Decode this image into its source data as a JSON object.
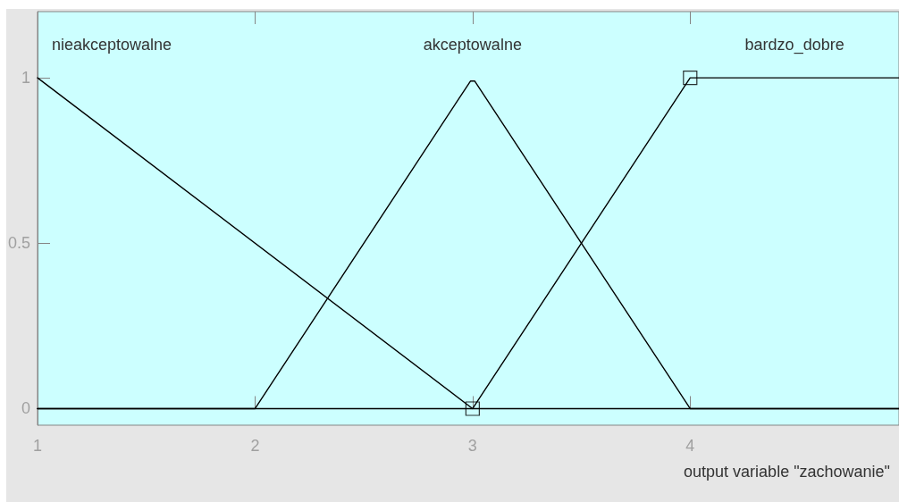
{
  "chart_data": {
    "type": "line",
    "xlabel": "output variable \"zachowanie\"",
    "xlim": [
      1,
      4.96
    ],
    "xticks": [
      1,
      2,
      3,
      4
    ],
    "ylim": [
      -0.05,
      1.2
    ],
    "yticks": [
      0,
      0.5,
      1
    ],
    "series": [
      {
        "name": "nieakceptowalne",
        "color": "#000000",
        "x": [
          1,
          3,
          4.96
        ],
        "values": [
          1,
          0,
          0
        ]
      },
      {
        "name": "akceptowalne",
        "color": "#000000",
        "x": [
          1,
          2,
          2.99,
          3.01,
          4,
          4.96
        ],
        "values": [
          0,
          0,
          0.99,
          0.99,
          0,
          0
        ]
      },
      {
        "name": "bardzo_dobre",
        "color": "#000000",
        "x": [
          1,
          3,
          4,
          4.96
        ],
        "values": [
          0,
          0,
          1,
          1
        ]
      },
      {
        "type": "scatter",
        "color": "#000000",
        "marker": "square",
        "x": [
          3,
          4
        ],
        "values": [
          0,
          1
        ]
      }
    ]
  }
}
